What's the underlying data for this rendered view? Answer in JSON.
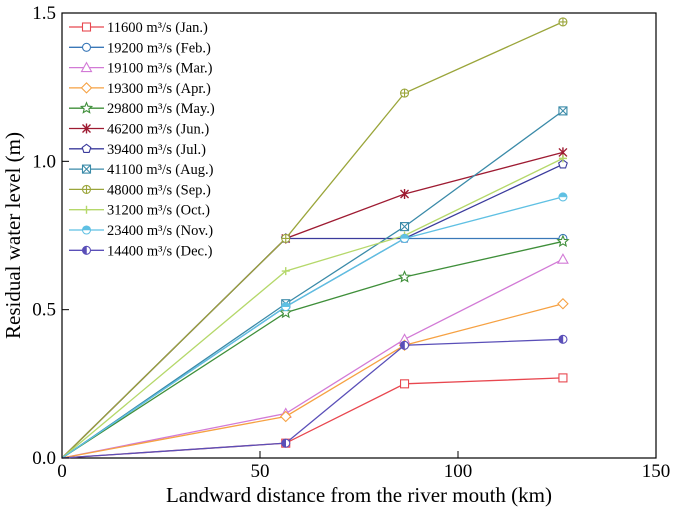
{
  "chart_data": {
    "type": "line",
    "title": "",
    "xlabel": "Landward distance from the river mouth (km)",
    "ylabel": "Residual water level (m)",
    "xlim": [
      0,
      150
    ],
    "ylim": [
      0,
      1.5
    ],
    "xticks": [
      0,
      50,
      100,
      150
    ],
    "yticks": [
      0.0,
      0.5,
      1.0,
      1.5
    ],
    "xtick_labels": [
      "0",
      "50",
      "100",
      "150"
    ],
    "ytick_labels": [
      "0.0",
      "0.5",
      "1.0",
      "1.5"
    ],
    "grid": false,
    "legend_position": "top-left",
    "x": [
      0,
      56.5,
      86.5,
      126.5
    ],
    "series": [
      {
        "name": "11600 m³/s (Jan.)",
        "color": "#e8474f",
        "marker": "square",
        "values": [
          0,
          0.05,
          0.25,
          0.27
        ]
      },
      {
        "name": "19200 m³/s (Feb.)",
        "color": "#3a78b8",
        "marker": "circle",
        "values": [
          0,
          0.51,
          0.74,
          0.74
        ]
      },
      {
        "name": "19100 m³/s (Mar.)",
        "color": "#d27ad6",
        "marker": "triangle",
        "values": [
          0,
          0.15,
          0.4,
          0.67
        ]
      },
      {
        "name": "19300 m³/s (Apr.)",
        "color": "#f6a142",
        "marker": "diamond",
        "values": [
          0,
          0.14,
          0.38,
          0.52
        ]
      },
      {
        "name": "29800 m³/s (May.)",
        "color": "#3f8f3a",
        "marker": "star",
        "values": [
          0,
          0.49,
          0.61,
          0.73
        ]
      },
      {
        "name": "46200 m³/s (Jun.)",
        "color": "#9e1b32",
        "marker": "asterisk",
        "values": [
          0,
          0.74,
          0.89,
          1.03
        ]
      },
      {
        "name": "39400 m³/s (Jul.)",
        "color": "#3b3b9c",
        "marker": "pentagon",
        "values": [
          0,
          0.74,
          0.74,
          0.99
        ]
      },
      {
        "name": "41100 m³/s (Aug.)",
        "color": "#3a8aa8",
        "marker": "boxx",
        "values": [
          0,
          0.52,
          0.78,
          1.17
        ]
      },
      {
        "name": "48000 m³/s (Sep.)",
        "color": "#9aa53a",
        "marker": "circleplus",
        "values": [
          0,
          0.74,
          1.23,
          1.47
        ]
      },
      {
        "name": "31200 m³/s (Oct.)",
        "color": "#b5d86a",
        "marker": "plus",
        "values": [
          0,
          0.63,
          0.75,
          1.01
        ]
      },
      {
        "name": "23400 m³/s (Nov.)",
        "color": "#5fc0e3",
        "marker": "halfcircle",
        "values": [
          0,
          0.51,
          0.74,
          0.88
        ]
      },
      {
        "name": "14400 m³/s (Dec.)",
        "color": "#5a4fb8",
        "marker": "halfdiamond",
        "values": [
          0,
          0.05,
          0.38,
          0.4
        ]
      }
    ]
  }
}
